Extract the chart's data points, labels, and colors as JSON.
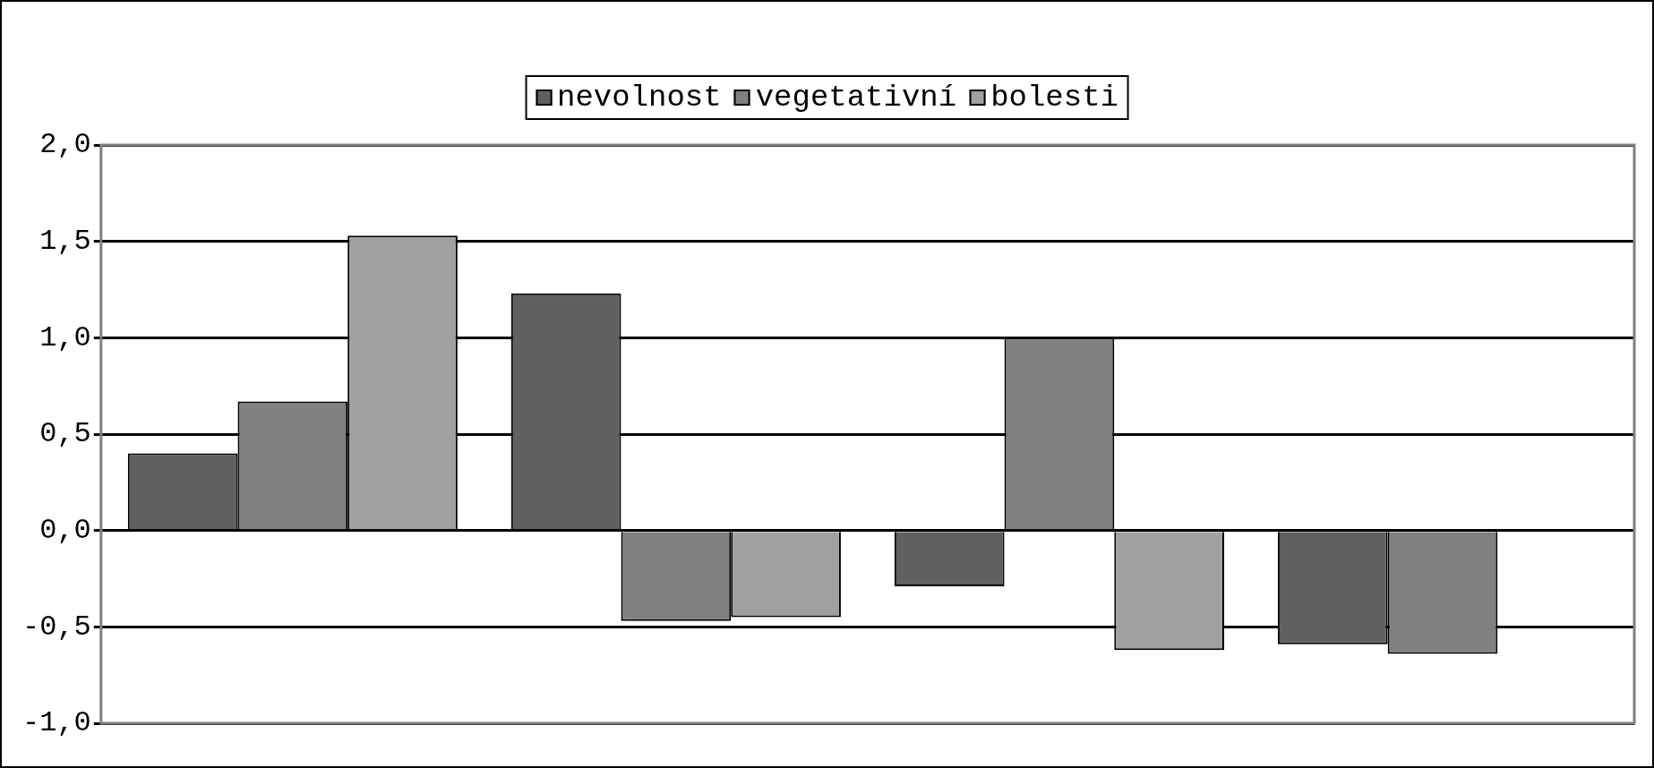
{
  "chart_data": {
    "type": "bar",
    "categories": [
      null,
      null,
      null,
      null
    ],
    "series": [
      {
        "name": "nevolnost",
        "color": "#606060",
        "values": [
          0.4,
          1.23,
          -0.29,
          -0.59
        ]
      },
      {
        "name": "vegetativní",
        "color": "#808080",
        "values": [
          0.67,
          -0.47,
          1.0,
          -0.64
        ]
      },
      {
        "name": "bolesti",
        "color": "#a0a0a0",
        "values": [
          1.53,
          -0.45,
          -0.62,
          null
        ]
      }
    ],
    "ylim": [
      -1,
      2
    ],
    "yticks": [
      {
        "value": -1,
        "label": "-1,0"
      },
      {
        "value": -0.5,
        "label": "-0,5"
      },
      {
        "value": 0,
        "label": "0,0"
      },
      {
        "value": 0.5,
        "label": "0,5"
      },
      {
        "value": 1,
        "label": "1,0"
      },
      {
        "value": 1.5,
        "label": "1,5"
      },
      {
        "value": 2,
        "label": "2,0"
      }
    ],
    "grid": "y",
    "legend": "top"
  }
}
